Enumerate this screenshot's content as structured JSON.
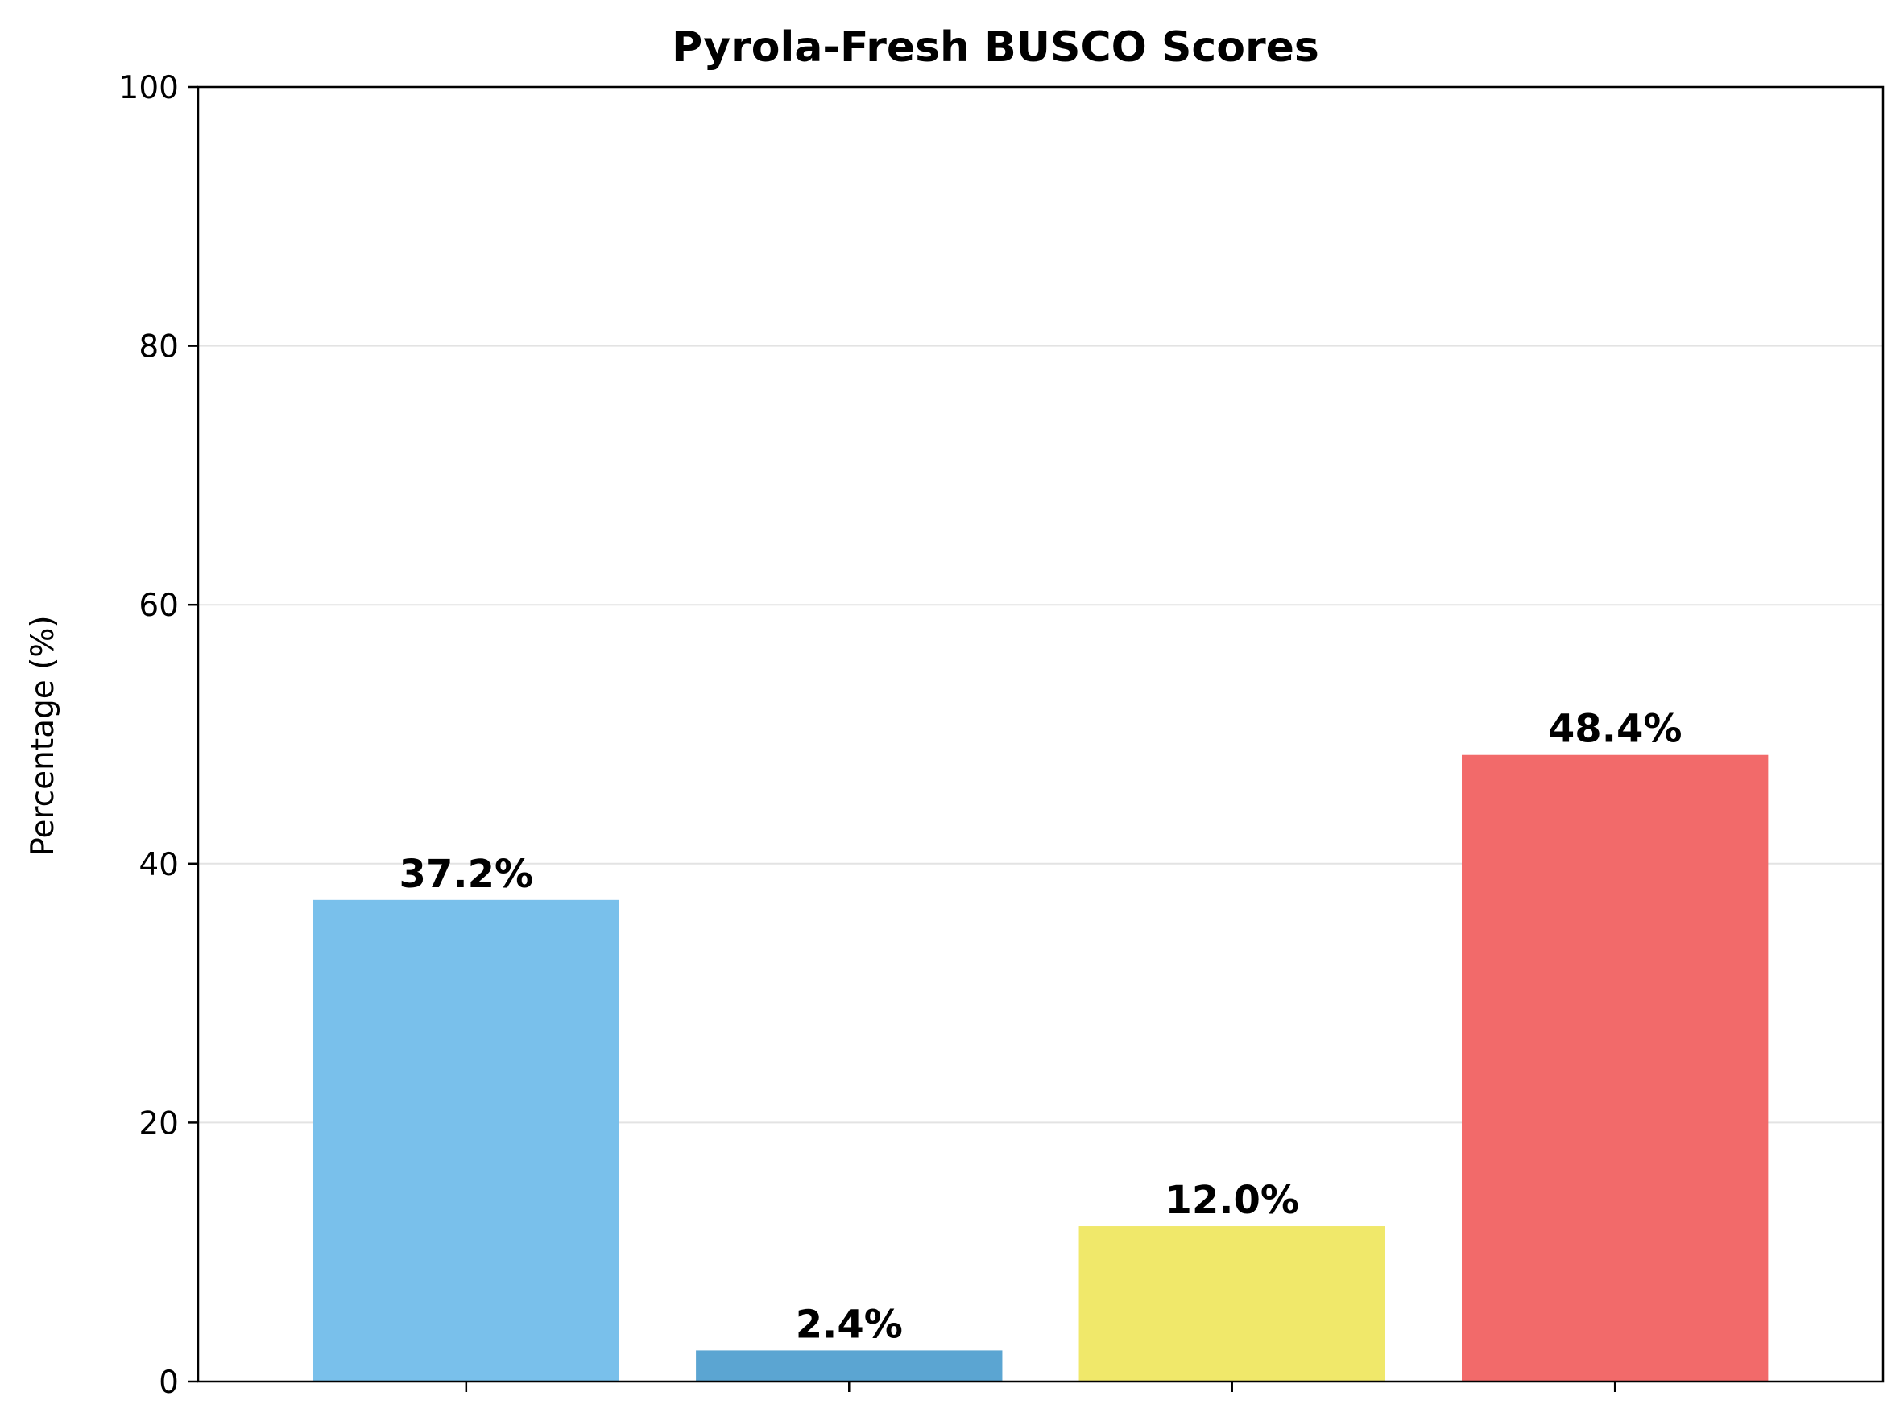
{
  "chart_data": {
    "type": "bar",
    "title": "Pyrola-Fresh BUSCO Scores",
    "xlabel": "",
    "ylabel": "Percentage (%)",
    "ylim": [
      0,
      100
    ],
    "yticks": [
      0,
      20,
      40,
      60,
      80,
      100
    ],
    "grid": "y",
    "categories": [
      "",
      "",
      "",
      ""
    ],
    "values": [
      37.2,
      2.4,
      12.0,
      48.4
    ],
    "value_labels": [
      "37.2%",
      "2.4%",
      "12.0%",
      "48.4%"
    ],
    "colors": [
      "#79c0eb",
      "#5ba5d2",
      "#f0e86a",
      "#f26a6a"
    ]
  }
}
